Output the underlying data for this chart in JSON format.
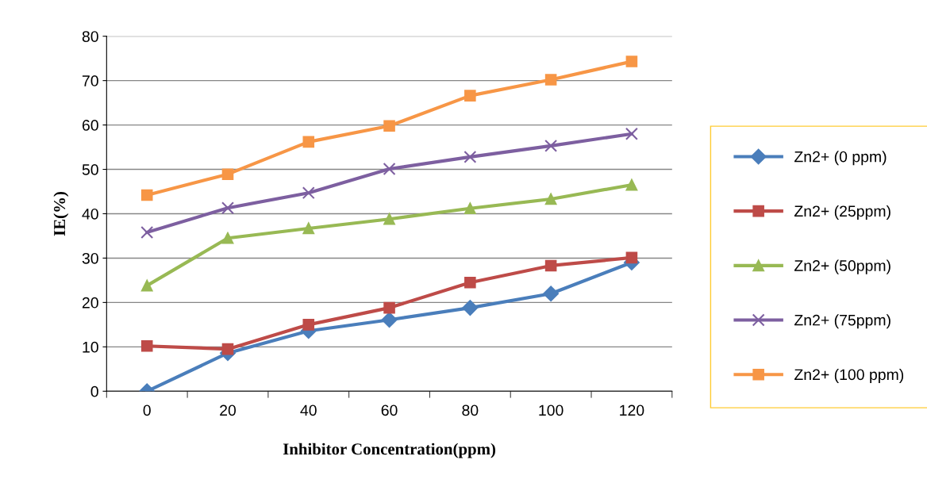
{
  "chart_data": {
    "type": "line",
    "xlabel": "Inhibitor Concentration(ppm)",
    "ylabel": "IE(%)",
    "categories": [
      "0",
      "20",
      "40",
      "60",
      "80",
      "100",
      "120"
    ],
    "series": [
      {
        "name": "Zn2+ (0 ppm)",
        "color": "#4a7ebb",
        "marker": "diamond",
        "values": [
          0,
          8.6,
          13.6,
          16.1,
          18.8,
          22,
          29
        ]
      },
      {
        "name": "Zn2+ (25ppm)",
        "color": "#be4b48",
        "marker": "square",
        "values": [
          10.2,
          9.5,
          15,
          18.8,
          24.5,
          28.3,
          30.1
        ]
      },
      {
        "name": "Zn2+ (50ppm)",
        "color": "#98b954",
        "marker": "triangle",
        "values": [
          23.8,
          34.5,
          36.7,
          38.8,
          41.2,
          43.3,
          46.5
        ]
      },
      {
        "name": "Zn2+ (75ppm)",
        "color": "#7d5fa0",
        "marker": "cross",
        "values": [
          35.8,
          41.3,
          44.7,
          50.1,
          52.8,
          55.3,
          58
        ]
      },
      {
        "name": "Zn2+ (100 ppm)",
        "color": "#f79646",
        "marker": "square",
        "values": [
          44.2,
          48.9,
          56.2,
          59.8,
          66.6,
          70.2,
          74.3
        ]
      }
    ],
    "ylim": [
      0,
      80
    ],
    "yticks": [
      0,
      10,
      20,
      30,
      40,
      50,
      60,
      70,
      80
    ],
    "grid": "y",
    "legend": "right",
    "line_style": "solid"
  }
}
